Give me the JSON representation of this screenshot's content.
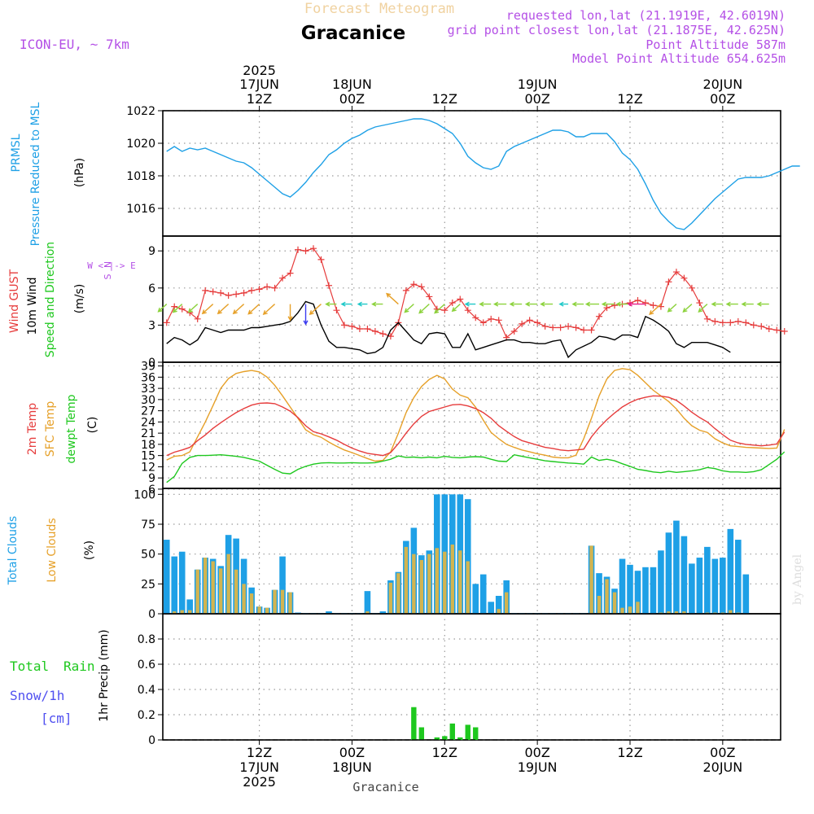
{
  "header": {
    "app_title": "Forecast Meteogram",
    "location": "Gracanice",
    "model": "ICON-EU, ~ 7km",
    "requested": "requested lon,lat (21.1919E, 42.6019N)",
    "grid_point": "grid point closest lon,lat (21.1875E, 42.625N)",
    "point_altitude": "Point Altitude 587m",
    "model_altitude": "Model Point Altitude 654.625m",
    "footer_location": "Gracanice",
    "credit": "by Angel"
  },
  "colors": {
    "blue": "#1ea0e6",
    "red": "#e63c3c",
    "black": "#000000",
    "green": "#1ec81e",
    "orange": "#e6a028",
    "purple": "#b450e6",
    "snowblue": "#5050f0",
    "gold": "#d2b450"
  },
  "time_axis": {
    "top_ticks": [
      {
        "h": 12,
        "l1": "2025",
        "l2": "17JUN",
        "l3": "12Z"
      },
      {
        "h": 24,
        "l1": "",
        "l2": "18JUN",
        "l3": "00Z"
      },
      {
        "h": 36,
        "l1": "",
        "l2": "",
        "l3": "12Z"
      },
      {
        "h": 48,
        "l1": "",
        "l2": "19JUN",
        "l3": "00Z"
      },
      {
        "h": 60,
        "l1": "",
        "l2": "",
        "l3": "12Z"
      },
      {
        "h": 72,
        "l1": "",
        "l2": "20JUN",
        "l3": "00Z"
      }
    ],
    "bottom_ticks": [
      {
        "h": 12,
        "l1": "12Z",
        "l2": "17JUN",
        "l3": "2025"
      },
      {
        "h": 24,
        "l1": "00Z",
        "l2": "18JUN",
        "l3": ""
      },
      {
        "h": 36,
        "l1": "12Z",
        "l2": "",
        "l3": ""
      },
      {
        "h": 48,
        "l1": "00Z",
        "l2": "19JUN",
        "l3": ""
      },
      {
        "h": 60,
        "l1": "12Z",
        "l2": "",
        "l3": ""
      },
      {
        "h": 72,
        "l1": "00Z",
        "l2": "20JUN",
        "l3": ""
      }
    ]
  },
  "panel_labels": {
    "pressure": [
      "PRMSL",
      "Pressure Reduced to MSL",
      "(hPa)"
    ],
    "wind": [
      "Wind GUST",
      "10m Wind",
      "Speed and Direction",
      "(m/s)"
    ],
    "compass": [
      "N",
      "W <-|-> E",
      "S"
    ],
    "temp": [
      "2m Temp",
      "SFC Temp",
      "dewpt Temp",
      "(C)"
    ],
    "clouds": [
      "Total Clouds",
      "Low Clouds",
      "(%)"
    ],
    "precip": [
      "Total",
      "Rain",
      "Snow/1h",
      "[cm]",
      "1hr Precip (mm)"
    ]
  },
  "chart_data": [
    {
      "type": "line",
      "name": "pressure",
      "title": "PRMSL Pressure Reduced to MSL",
      "ylabel": "(hPa)",
      "ylim": [
        1014.3,
        1022
      ],
      "yticks": [
        1016,
        1018,
        1020,
        1022
      ],
      "tick_labels": [
        "1016",
        "1018",
        "1020",
        "1022"
      ],
      "x_hours_start": 0,
      "x_hours_step": 1,
      "series": [
        {
          "name": "PRMSL",
          "values": [
            1019.5,
            1019.8,
            1019.5,
            1019.7,
            1019.6,
            1019.7,
            1019.5,
            1019.3,
            1019.1,
            1018.9,
            1018.8,
            1018.5,
            1018.1,
            1017.7,
            1017.3,
            1016.9,
            1016.7,
            1017.1,
            1017.6,
            1018.2,
            1018.7,
            1019.3,
            1019.6,
            1020.0,
            1020.3,
            1020.5,
            1020.8,
            1021.0,
            1021.1,
            1021.2,
            1021.3,
            1021.4,
            1021.5,
            1021.5,
            1021.4,
            1021.2,
            1020.9,
            1020.6,
            1020.0,
            1019.2,
            1018.8,
            1018.5,
            1018.4,
            1018.6,
            1019.5,
            1019.8,
            1020.0,
            1020.2,
            1020.4,
            1020.6,
            1020.8,
            1020.8,
            1020.7,
            1020.4,
            1020.4,
            1020.6,
            1020.6,
            1020.6,
            1020.1,
            1019.4,
            1019.0,
            1018.4,
            1017.5,
            1016.5,
            1015.7,
            1015.2,
            1014.8,
            1014.7,
            1015.1,
            1015.6,
            1016.1,
            1016.6,
            1017.0,
            1017.4,
            1017.8,
            1017.9,
            1017.9,
            1017.9,
            1018.0,
            1018.2,
            1018.4,
            1018.6,
            1018.6
          ]
        }
      ]
    },
    {
      "type": "line",
      "name": "wind",
      "title": "Wind GUST / 10m Wind Speed and Direction",
      "ylabel": "(m/s)",
      "ylim": [
        0,
        10.2
      ],
      "yticks": [
        0,
        3,
        6,
        9
      ],
      "tick_labels": [
        "0",
        "3",
        "6",
        "9"
      ],
      "x_hours_start": 0,
      "x_hours_step": 1,
      "series": [
        {
          "name": "Wind GUST",
          "values": [
            3.2,
            4.5,
            4.3,
            4.0,
            3.5,
            5.8,
            5.7,
            5.6,
            5.4,
            5.5,
            5.6,
            5.8,
            5.9,
            6.1,
            6.0,
            6.8,
            7.2,
            9.1,
            9.0,
            9.2,
            8.3,
            6.2,
            4.2,
            3.0,
            2.9,
            2.7,
            2.7,
            2.5,
            2.3,
            2.1,
            3.2,
            5.8,
            6.3,
            6.1,
            5.3,
            4.3,
            4.2,
            4.8,
            5.1,
            4.2,
            3.6,
            3.2,
            3.5,
            3.4,
            2.0,
            2.5,
            3.1,
            3.4,
            3.2,
            2.9,
            2.8,
            2.8,
            2.9,
            2.8,
            2.6,
            2.6,
            3.7,
            4.4,
            4.6,
            4.7,
            4.8,
            5.0,
            4.8,
            4.6,
            4.5,
            6.5,
            7.3,
            6.8,
            6.0,
            4.8,
            3.5,
            3.3,
            3.2,
            3.2,
            3.3,
            3.2,
            3.0,
            2.9,
            2.7,
            2.6,
            2.5
          ]
        },
        {
          "name": "10m Wind",
          "values": [
            1.5,
            2.0,
            1.8,
            1.4,
            1.8,
            2.8,
            2.6,
            2.4,
            2.6,
            2.6,
            2.6,
            2.8,
            2.8,
            2.9,
            3.0,
            3.1,
            3.3,
            4.0,
            4.9,
            4.7,
            3.0,
            1.7,
            1.2,
            1.2,
            1.1,
            1.0,
            0.7,
            0.8,
            1.2,
            2.6,
            3.2,
            2.5,
            1.8,
            1.5,
            2.3,
            2.4,
            2.3,
            1.2,
            1.2,
            2.3,
            1.0,
            1.2,
            1.4,
            1.6,
            1.8,
            1.8,
            1.6,
            1.6,
            1.5,
            1.5,
            1.7,
            1.8,
            0.4,
            1.0,
            1.3,
            1.6,
            2.1,
            2.0,
            1.8,
            2.2,
            2.2,
            2.0,
            3.7,
            3.4,
            3.0,
            2.5,
            1.5,
            1.2,
            1.6,
            1.6,
            1.6,
            1.4,
            1.2,
            0.8
          ]
        }
      ],
      "wind_vectors": {
        "hours": [
          0,
          2,
          4,
          6,
          8,
          10,
          12,
          14,
          16,
          18,
          20,
          22,
          24,
          26,
          28,
          30,
          32,
          34,
          36,
          38,
          40,
          42,
          44,
          46,
          48,
          50,
          52,
          54,
          56,
          58,
          60,
          62,
          64,
          66,
          68,
          70,
          72,
          74,
          76,
          78
        ],
        "dirs": [
          "NE",
          "NE",
          "NE",
          "NE",
          "NE",
          "NE",
          "NE",
          "NE",
          "N",
          "N",
          "NE",
          "E",
          "E",
          "E",
          "E",
          "SE",
          "NE",
          "NE",
          "NE",
          "NE",
          "E",
          "E",
          "E",
          "E",
          "E",
          "E",
          "E",
          "E",
          "E",
          "E",
          "E",
          "E",
          "NE",
          "NE",
          "NE",
          "NE",
          "E",
          "E",
          "E",
          "E"
        ]
      }
    },
    {
      "type": "line",
      "name": "temperature",
      "title": "2m Temp / SFC Temp / dewpt Temp",
      "ylabel": "(C)",
      "ylim": [
        6.2,
        40
      ],
      "yticks": [
        6,
        9,
        12,
        15,
        18,
        21,
        24,
        27,
        30,
        33,
        36,
        39
      ],
      "tick_labels": [
        "6",
        "9",
        "12",
        "15",
        "18",
        "21",
        "24",
        "27",
        "30",
        "33",
        "36",
        "39"
      ],
      "x_hours_start": 0,
      "x_hours_step": 1,
      "series": [
        {
          "name": "2m Temp",
          "values": [
            15.0,
            15.9,
            16.5,
            17.2,
            19.0,
            20.5,
            22.3,
            23.8,
            25.2,
            26.5,
            27.6,
            28.5,
            29.0,
            29.1,
            28.9,
            28.0,
            26.9,
            25.2,
            23.0,
            21.4,
            20.8,
            20.0,
            19.1,
            18.0,
            17.0,
            16.2,
            15.6,
            15.3,
            15.0,
            15.8,
            18.2,
            21.0,
            23.5,
            25.5,
            26.8,
            27.4,
            28.0,
            28.6,
            28.7,
            28.3,
            27.6,
            26.5,
            25.0,
            23.0,
            21.5,
            20.1,
            19.0,
            18.4,
            17.8,
            17.2,
            16.9,
            16.5,
            16.3,
            16.5,
            16.7,
            20.0,
            22.5,
            24.6,
            26.4,
            28.0,
            29.2,
            30.1,
            30.6,
            31.0,
            30.9,
            30.6,
            29.8,
            28.3,
            26.6,
            25.2,
            24.0,
            22.2,
            20.6,
            19.1,
            18.4,
            18.0,
            17.8,
            17.6,
            17.8,
            18.1,
            21.3
          ]
        },
        {
          "name": "SFC Temp",
          "values": [
            13.8,
            14.8,
            15.0,
            16.0,
            20.0,
            24.0,
            28.4,
            33.0,
            35.6,
            37.0,
            37.5,
            37.8,
            37.4,
            36.0,
            33.8,
            31.0,
            28.0,
            25.0,
            21.9,
            20.6,
            19.9,
            18.6,
            17.5,
            16.5,
            15.8,
            15.0,
            14.2,
            13.5,
            13.7,
            16.0,
            21.0,
            26.5,
            30.5,
            33.5,
            35.4,
            36.5,
            35.5,
            32.8,
            31.2,
            30.5,
            28.0,
            24.5,
            21.2,
            19.5,
            18.0,
            17.2,
            16.5,
            16.0,
            15.5,
            15.1,
            14.6,
            14.4,
            14.4,
            15.1,
            19.5,
            25.0,
            31.0,
            35.5,
            37.8,
            38.3,
            38.0,
            36.5,
            34.5,
            32.5,
            31.0,
            29.5,
            27.5,
            25.0,
            23.0,
            21.8,
            21.2,
            19.5,
            18.4,
            17.6,
            17.4,
            17.2,
            17.1,
            17.0,
            16.9,
            17.0,
            22.0
          ]
        },
        {
          "name": "dewpt Temp",
          "values": [
            7.8,
            9.4,
            12.9,
            14.5,
            15.0,
            15.0,
            15.1,
            15.2,
            15.0,
            14.8,
            14.5,
            14.0,
            13.5,
            12.4,
            11.3,
            10.3,
            10.1,
            11.3,
            12.1,
            12.7,
            13.0,
            13.1,
            13.0,
            13.0,
            13.1,
            13.0,
            13.0,
            13.1,
            13.5,
            14.0,
            14.9,
            14.5,
            14.6,
            14.4,
            14.6,
            14.4,
            14.8,
            14.5,
            14.4,
            14.6,
            14.7,
            14.6,
            14.0,
            13.5,
            13.4,
            15.2,
            14.8,
            14.4,
            14.0,
            13.6,
            13.4,
            13.2,
            13.0,
            12.9,
            12.7,
            14.6,
            13.7,
            14.0,
            13.6,
            12.8,
            12.1,
            11.3,
            11.0,
            10.6,
            10.4,
            10.8,
            10.5,
            10.7,
            10.9,
            11.2,
            11.8,
            11.5,
            10.9,
            10.6,
            10.6,
            10.5,
            10.7,
            11.2,
            12.6,
            14.0,
            16.0
          ]
        }
      ]
    },
    {
      "type": "bar",
      "name": "clouds",
      "title": "Total Clouds / Low Clouds",
      "ylabel": "(%)",
      "ylim": [
        0,
        105
      ],
      "yticks": [
        0,
        25,
        50,
        75,
        100
      ],
      "tick_labels": [
        "0",
        "25",
        "50",
        "75",
        "100"
      ],
      "x_hours_start": 0,
      "x_hours_step": 1,
      "series": [
        {
          "name": "Total Clouds",
          "values": [
            62,
            48,
            52,
            12,
            37,
            47,
            46,
            40,
            66,
            63,
            46,
            22,
            6,
            5,
            20,
            48,
            18,
            1,
            0,
            0,
            0,
            2,
            0,
            0,
            0,
            0,
            19,
            0,
            2,
            28,
            35,
            61,
            72,
            49,
            53,
            100,
            100,
            100,
            100,
            96,
            25,
            33,
            10,
            15,
            28,
            0,
            0,
            0,
            0,
            0,
            0,
            0,
            0,
            0,
            0,
            57,
            34,
            31,
            21,
            46,
            41,
            36,
            39,
            39,
            53,
            68,
            78,
            65,
            42,
            47,
            56,
            46,
            47,
            71,
            62,
            33
          ]
        },
        {
          "name": "Low Clouds",
          "values": [
            0,
            2,
            3,
            3,
            37,
            47,
            44,
            38,
            50,
            37,
            25,
            17,
            6,
            5,
            20,
            20,
            18,
            0,
            0,
            0,
            0,
            0,
            0,
            0,
            0,
            0,
            2,
            0,
            0,
            26,
            34,
            56,
            50,
            45,
            50,
            55,
            52,
            58,
            53,
            44,
            0,
            0,
            0,
            4,
            18,
            0,
            0,
            0,
            0,
            0,
            0,
            0,
            0,
            0,
            0,
            57,
            15,
            29,
            18,
            5,
            6,
            10,
            0,
            0,
            1,
            2,
            2,
            2,
            0,
            0,
            1,
            1,
            1,
            3,
            1,
            0
          ]
        }
      ]
    },
    {
      "type": "bar",
      "name": "precip",
      "title": "1hr Precip",
      "ylabel": "1hr Precip (mm)",
      "ylim": [
        0,
        1.0
      ],
      "yticks": [
        0,
        0.2,
        0.4,
        0.6,
        0.8
      ],
      "tick_labels": [
        "0",
        "0.2",
        "0.4",
        "0.6",
        "0.8"
      ],
      "x_hours_start": 0,
      "x_hours_step": 1,
      "series": [
        {
          "name": "Total Rain",
          "values": [
            0,
            0,
            0,
            0,
            0,
            0,
            0,
            0,
            0,
            0,
            0,
            0,
            0,
            0,
            0,
            0,
            0,
            0,
            0,
            0,
            0,
            0,
            0,
            0,
            0,
            0,
            0,
            0,
            0,
            0,
            0,
            0,
            0.26,
            0.1,
            0,
            0.02,
            0.03,
            0.13,
            0.02,
            0.12,
            0.1,
            0,
            0,
            0,
            0,
            0,
            0,
            0,
            0,
            0,
            0,
            0,
            0,
            0,
            0,
            0,
            0,
            0,
            0,
            0,
            0,
            0,
            0,
            0,
            0,
            0,
            0,
            0,
            0,
            0,
            0,
            0,
            0,
            0,
            0,
            0,
            0,
            0,
            0,
            0,
            0
          ]
        }
      ]
    }
  ]
}
